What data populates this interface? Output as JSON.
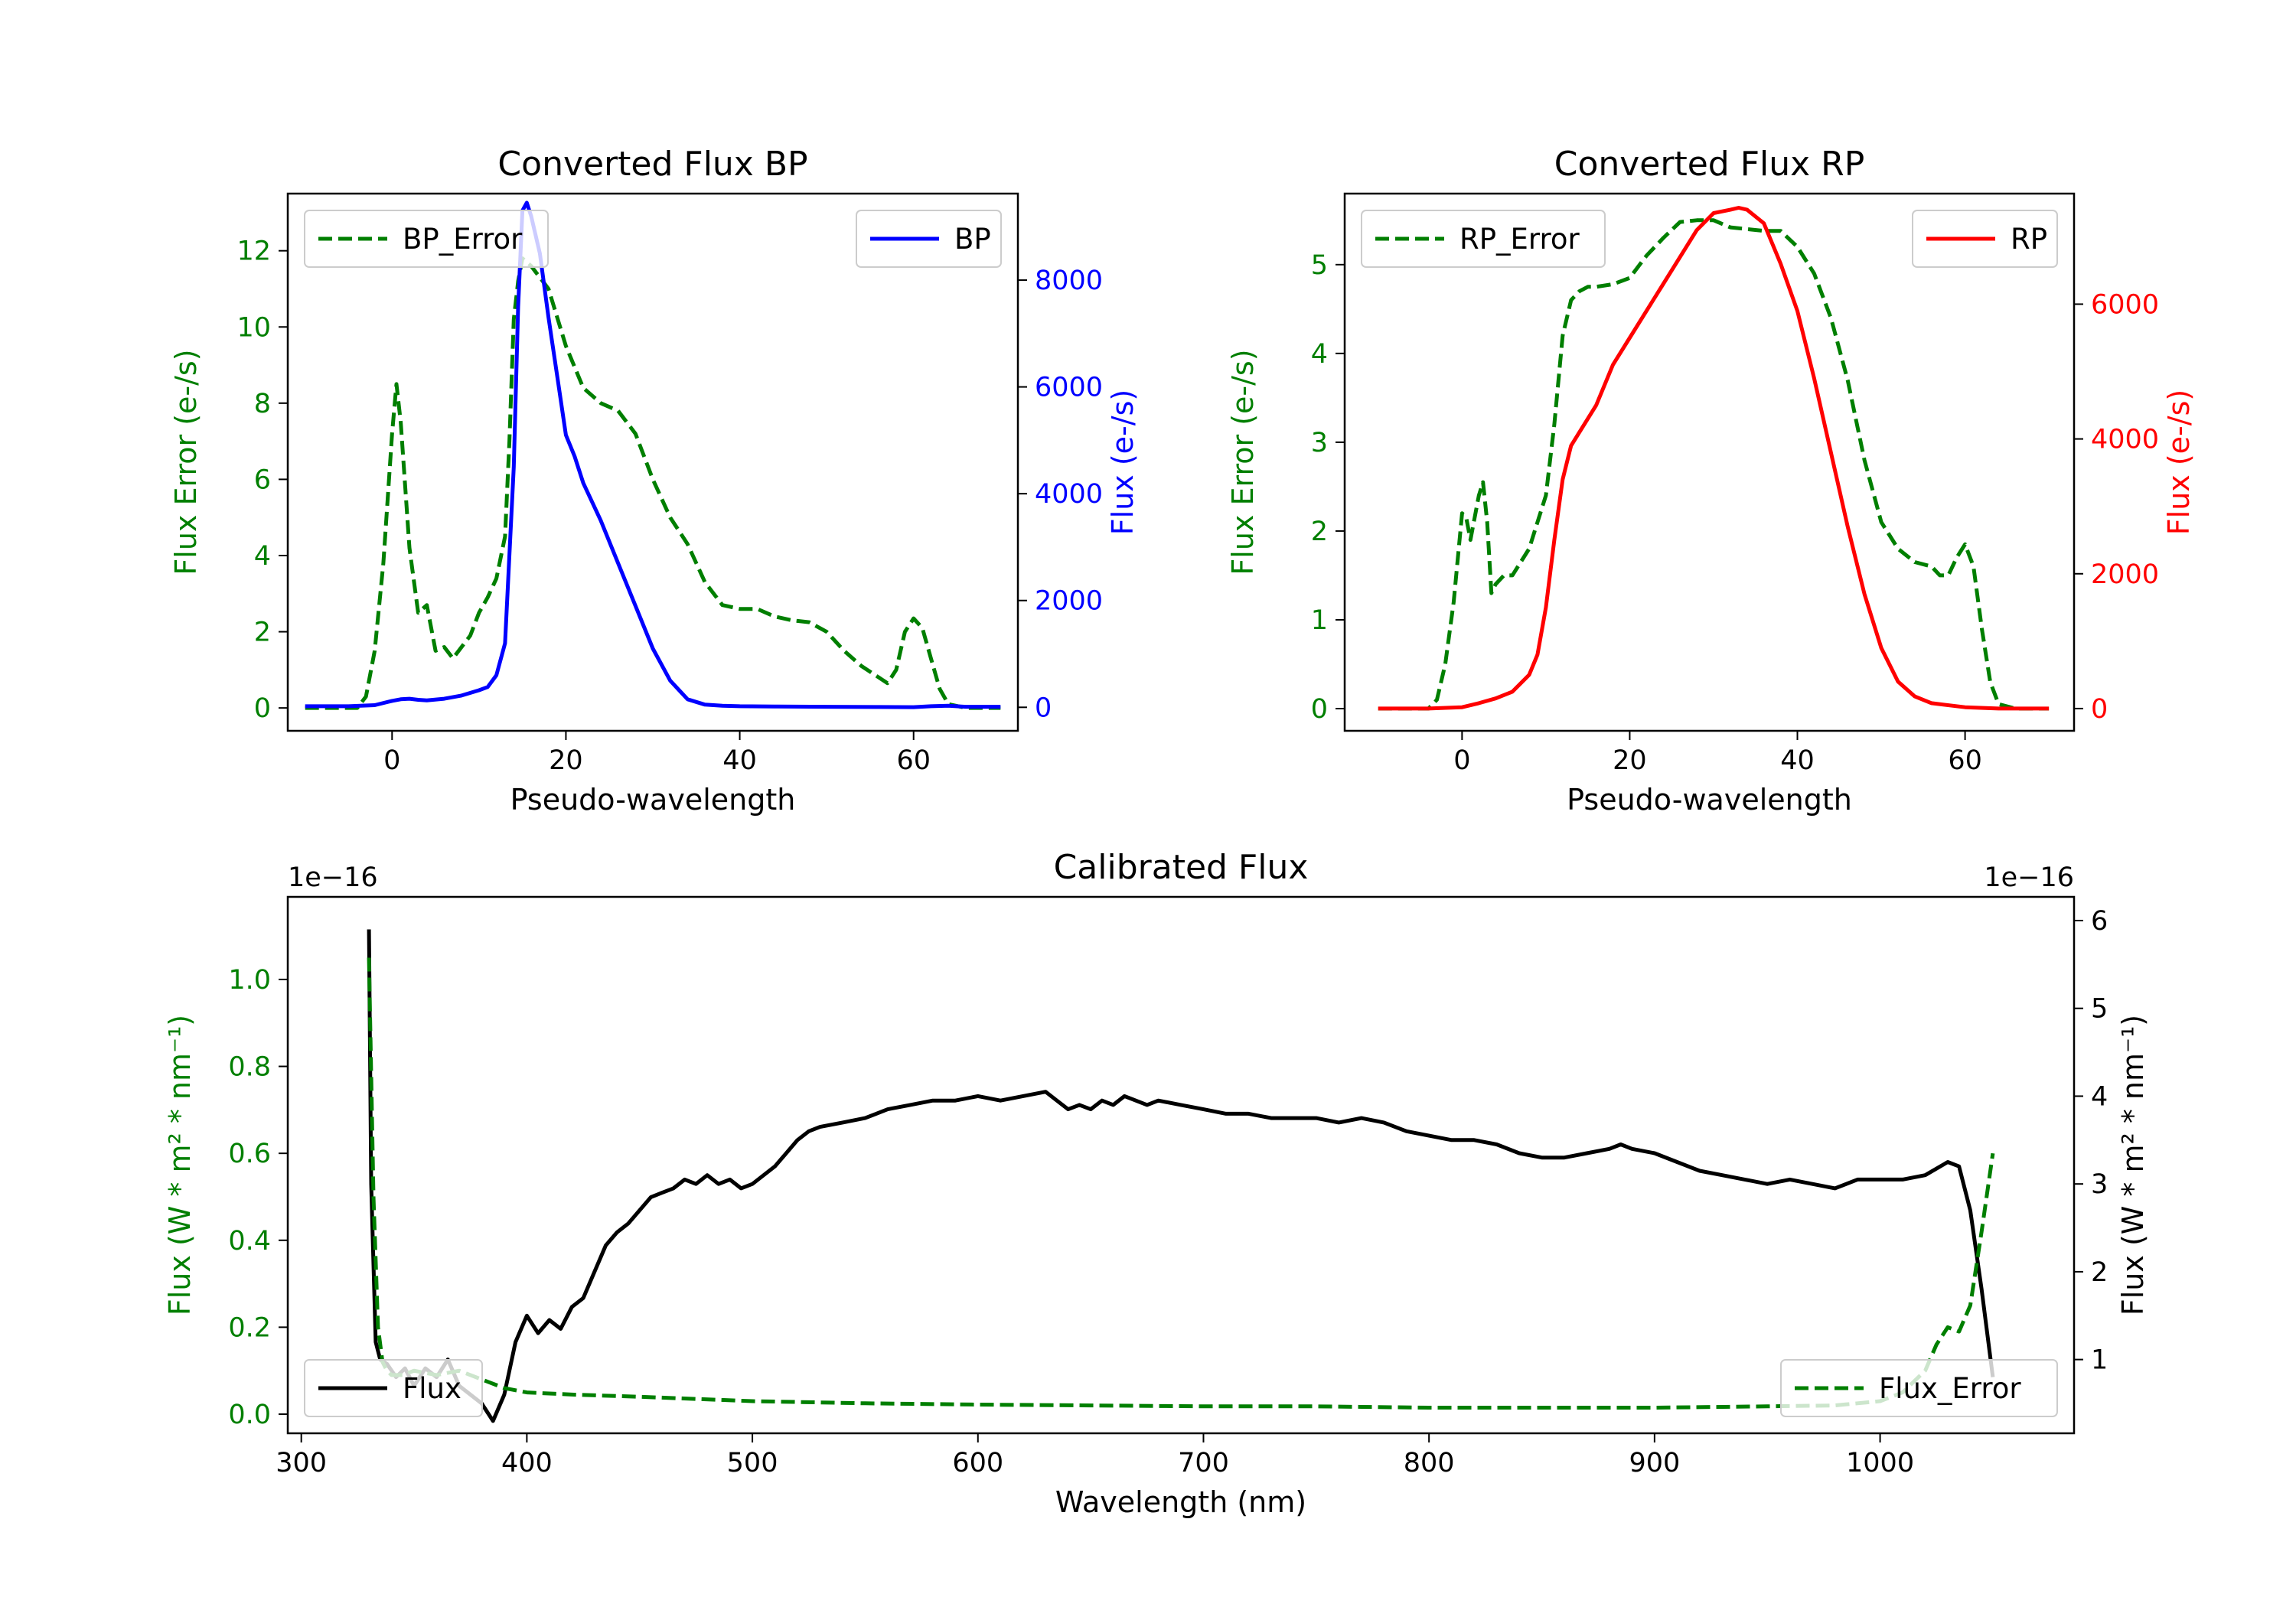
{
  "colors": {
    "green": "#007f00",
    "blue": "#0000ff",
    "red": "#ff0000",
    "black": "#000000"
  },
  "chart_data": [
    {
      "type": "line",
      "title": "Converted Flux BP",
      "xlabel": "Pseudo-wavelength",
      "ylabel_left": "Flux Error (e-/s)",
      "ylabel_right": "Flux (e-/s)",
      "xlim": [
        -12,
        72
      ],
      "ylim_left": [
        -0.6,
        13.5
      ],
      "ylim_right": [
        -440,
        9620
      ],
      "xticks": [
        0,
        20,
        40,
        60
      ],
      "xtick_labels": [
        "0",
        "20",
        "40",
        "60"
      ],
      "yticks_left": [
        0,
        2,
        4,
        6,
        8,
        10,
        12
      ],
      "ytick_labels_left": [
        "0",
        "2",
        "4",
        "6",
        "8",
        "10",
        "12"
      ],
      "yticks_right": [
        0,
        2000,
        4000,
        6000,
        8000
      ],
      "ytick_labels_right": [
        "0",
        "2000",
        "4000",
        "6000",
        "8000"
      ],
      "legend_left": {
        "label": "BP_Error",
        "location": "upper left"
      },
      "legend_right": {
        "label": "BP",
        "location": "upper right"
      },
      "series": [
        {
          "name": "BP_Error",
          "axis": "left",
          "style": "dashed",
          "color": "green",
          "x": [
            -10,
            -4,
            -3,
            -2,
            -1,
            0,
            0.5,
            1,
            2,
            3,
            4,
            5,
            6,
            7,
            8,
            9,
            10,
            11,
            12,
            13,
            13.5,
            14,
            14.5,
            15,
            16,
            18,
            20,
            22,
            24,
            26,
            28,
            30,
            32,
            34,
            36,
            38,
            40,
            42,
            44,
            46,
            48,
            50,
            52,
            54,
            56,
            57,
            58,
            59,
            60,
            61,
            62,
            63,
            64,
            66,
            70
          ],
          "values": [
            0,
            0,
            0.3,
            1.5,
            3.8,
            7.2,
            8.5,
            7.5,
            4.2,
            2.5,
            2.7,
            1.5,
            1.6,
            1.3,
            1.6,
            1.9,
            2.5,
            2.9,
            3.4,
            4.5,
            7,
            10.2,
            11.2,
            11.8,
            11.6,
            11.0,
            9.5,
            8.4,
            8.0,
            7.8,
            7.2,
            6.0,
            5.0,
            4.3,
            3.3,
            2.7,
            2.6,
            2.6,
            2.4,
            2.3,
            2.25,
            2.0,
            1.5,
            1.1,
            0.8,
            0.65,
            1.0,
            2.0,
            2.35,
            2.1,
            1.3,
            0.5,
            0.1,
            0,
            0
          ]
        },
        {
          "name": "BP",
          "axis": "right",
          "style": "solid",
          "color": "blue",
          "x": [
            -10,
            -5,
            -2,
            0,
            1,
            2,
            3,
            4,
            6,
            8,
            10,
            11,
            12,
            13,
            14,
            14.5,
            15,
            15.5,
            16,
            17,
            18,
            19,
            20,
            21,
            22,
            24,
            26,
            28,
            30,
            32,
            34,
            36,
            37,
            38,
            40,
            44,
            50,
            56,
            60,
            62,
            64,
            66,
            70
          ],
          "values": [
            20,
            20,
            40,
            120,
            150,
            160,
            140,
            130,
            160,
            220,
            320,
            380,
            600,
            1200,
            4500,
            7500,
            9300,
            9450,
            9200,
            8500,
            7300,
            6200,
            5100,
            4700,
            4200,
            3500,
            2700,
            1900,
            1100,
            500,
            150,
            50,
            40,
            30,
            20,
            15,
            10,
            5,
            3,
            20,
            30,
            10,
            10
          ]
        }
      ]
    },
    {
      "type": "line",
      "title": "Converted Flux RP",
      "xlabel": "Pseudo-wavelength",
      "ylabel_left": "Flux Error (e-/s)",
      "ylabel_right": "Flux (e-/s)",
      "xlim": [
        -14,
        73
      ],
      "ylim_left": [
        -0.25,
        5.8
      ],
      "ylim_right": [
        -330,
        7640
      ],
      "xticks": [
        0,
        20,
        40,
        60
      ],
      "xtick_labels": [
        "0",
        "20",
        "40",
        "60"
      ],
      "yticks_left": [
        0,
        1,
        2,
        3,
        4,
        5
      ],
      "ytick_labels_left": [
        "0",
        "1",
        "2",
        "3",
        "4",
        "5"
      ],
      "yticks_right": [
        0,
        2000,
        4000,
        6000
      ],
      "ytick_labels_right": [
        "0",
        "2000",
        "4000",
        "6000"
      ],
      "legend_left": {
        "label": "RP_Error",
        "location": "upper left"
      },
      "legend_right": {
        "label": "RP",
        "location": "upper right"
      },
      "series": [
        {
          "name": "RP_Error",
          "axis": "left",
          "style": "dashed",
          "color": "green",
          "x": [
            -10,
            -4,
            -3,
            -2,
            -1,
            0,
            0.5,
            1,
            2,
            2.5,
            3,
            3.5,
            4,
            5,
            6,
            8,
            10,
            11,
            12,
            13,
            14,
            15,
            16,
            18,
            20,
            22,
            24,
            26,
            28,
            30,
            32,
            34,
            36,
            38,
            40,
            42,
            44,
            46,
            48,
            50,
            52,
            54,
            56,
            57,
            58,
            59,
            60,
            61,
            62,
            63,
            64,
            66,
            70
          ],
          "values": [
            0,
            0,
            0.1,
            0.5,
            1.2,
            2.2,
            2.15,
            1.9,
            2.4,
            2.55,
            2.1,
            1.3,
            1.4,
            1.5,
            1.5,
            1.8,
            2.4,
            3.2,
            4.2,
            4.6,
            4.7,
            4.75,
            4.75,
            4.78,
            4.85,
            5.1,
            5.3,
            5.48,
            5.5,
            5.5,
            5.42,
            5.4,
            5.38,
            5.38,
            5.2,
            4.9,
            4.4,
            3.7,
            2.8,
            2.1,
            1.8,
            1.65,
            1.6,
            1.5,
            1.5,
            1.7,
            1.85,
            1.6,
            0.9,
            0.3,
            0.05,
            0,
            0
          ]
        },
        {
          "name": "RP",
          "axis": "right",
          "style": "solid",
          "color": "red",
          "x": [
            -10,
            -4,
            0,
            2,
            4,
            6,
            8,
            9,
            10,
            11,
            12,
            13,
            14,
            16,
            18,
            20,
            22,
            24,
            26,
            28,
            30,
            32,
            33,
            34,
            36,
            38,
            40,
            42,
            44,
            46,
            48,
            50,
            52,
            54,
            56,
            60,
            64,
            70
          ],
          "values": [
            0,
            0,
            20,
            80,
            150,
            250,
            500,
            800,
            1500,
            2500,
            3400,
            3900,
            4100,
            4500,
            5100,
            5500,
            5900,
            6300,
            6700,
            7100,
            7350,
            7400,
            7430,
            7400,
            7200,
            6600,
            5900,
            4900,
            3800,
            2700,
            1700,
            900,
            400,
            180,
            80,
            20,
            0,
            0
          ]
        }
      ]
    },
    {
      "type": "line",
      "title": "Calibrated Flux",
      "xlabel": "Wavelength (nm)",
      "ylabel_left": "Flux (W * m² * nm⁻¹)",
      "ylabel_right": "Flux (W * m² * nm⁻¹)",
      "left_offset_text": "1e−16",
      "right_offset_text": "1e−16",
      "xlim": [
        294,
        1086
      ],
      "ylim_left": [
        -0.044,
        1.19
      ],
      "ylim_right": [
        0.16,
        6.27
      ],
      "xticks": [
        300,
        400,
        500,
        600,
        700,
        800,
        900,
        1000
      ],
      "xtick_labels": [
        "300",
        "400",
        "500",
        "600",
        "700",
        "800",
        "900",
        "1000"
      ],
      "yticks_left": [
        0,
        0.2,
        0.4,
        0.6,
        0.8,
        1.0
      ],
      "ytick_labels_left": [
        "0.0",
        "0.2",
        "0.4",
        "0.6",
        "0.8",
        "1.0"
      ],
      "yticks_right": [
        1,
        2,
        3,
        4,
        5,
        6
      ],
      "ytick_labels_right": [
        "1",
        "2",
        "3",
        "4",
        "5",
        "6"
      ],
      "legend_left": {
        "label": "Flux",
        "location": "lower left"
      },
      "legend_right": {
        "label": "Flux_Error",
        "location": "lower right"
      },
      "series": [
        {
          "name": "Flux_Error",
          "axis": "left",
          "style": "dashed",
          "color": "green",
          "x": [
            330,
            332,
            334,
            336,
            338,
            340,
            345,
            350,
            360,
            370,
            380,
            390,
            400,
            420,
            450,
            500,
            550,
            600,
            650,
            700,
            750,
            800,
            850,
            900,
            950,
            980,
            1000,
            1010,
            1020,
            1025,
            1030,
            1035,
            1040,
            1045,
            1050
          ],
          "values": [
            1.05,
            0.5,
            0.2,
            0.12,
            0.1,
            0.09,
            0.09,
            0.1,
            0.09,
            0.1,
            0.08,
            0.06,
            0.05,
            0.045,
            0.04,
            0.03,
            0.025,
            0.022,
            0.02,
            0.018,
            0.018,
            0.015,
            0.015,
            0.015,
            0.018,
            0.02,
            0.03,
            0.05,
            0.1,
            0.16,
            0.2,
            0.19,
            0.25,
            0.42,
            0.6
          ]
        },
        {
          "name": "Flux",
          "axis": "right",
          "style": "solid",
          "color": "black",
          "x": [
            330,
            331,
            333,
            335,
            338,
            342,
            346,
            350,
            355,
            360,
            365,
            370,
            375,
            380,
            385,
            390,
            395,
            400,
            405,
            410,
            415,
            420,
            425,
            430,
            435,
            440,
            445,
            450,
            455,
            460,
            465,
            470,
            475,
            480,
            485,
            490,
            495,
            500,
            505,
            510,
            515,
            520,
            525,
            530,
            540,
            550,
            560,
            570,
            580,
            590,
            600,
            610,
            620,
            630,
            635,
            640,
            645,
            650,
            655,
            660,
            665,
            670,
            675,
            680,
            690,
            700,
            710,
            720,
            730,
            740,
            750,
            760,
            770,
            780,
            790,
            800,
            810,
            820,
            830,
            840,
            850,
            860,
            870,
            880,
            885,
            890,
            900,
            910,
            920,
            930,
            940,
            950,
            960,
            970,
            980,
            990,
            1000,
            1010,
            1020,
            1030,
            1035,
            1040,
            1045,
            1050
          ],
          "values": [
            5.9,
            3.0,
            1.2,
            1.0,
            0.95,
            0.8,
            0.9,
            0.7,
            0.9,
            0.8,
            1.0,
            0.7,
            0.6,
            0.5,
            0.3,
            0.6,
            1.2,
            1.5,
            1.3,
            1.45,
            1.35,
            1.6,
            1.7,
            2.0,
            2.3,
            2.45,
            2.55,
            2.7,
            2.85,
            2.9,
            2.95,
            3.05,
            3.0,
            3.1,
            3.0,
            3.05,
            2.95,
            3.0,
            3.1,
            3.2,
            3.35,
            3.5,
            3.6,
            3.65,
            3.7,
            3.75,
            3.85,
            3.9,
            3.95,
            3.95,
            4.0,
            3.95,
            4.0,
            4.05,
            3.95,
            3.85,
            3.9,
            3.85,
            3.95,
            3.9,
            4.0,
            3.95,
            3.9,
            3.95,
            3.9,
            3.85,
            3.8,
            3.8,
            3.75,
            3.75,
            3.75,
            3.7,
            3.75,
            3.7,
            3.6,
            3.55,
            3.5,
            3.5,
            3.45,
            3.35,
            3.3,
            3.3,
            3.35,
            3.4,
            3.45,
            3.4,
            3.35,
            3.25,
            3.15,
            3.1,
            3.05,
            3.0,
            3.05,
            3.0,
            2.95,
            3.05,
            3.05,
            3.05,
            3.1,
            3.25,
            3.2,
            2.7,
            1.8,
            0.8
          ]
        }
      ]
    }
  ]
}
